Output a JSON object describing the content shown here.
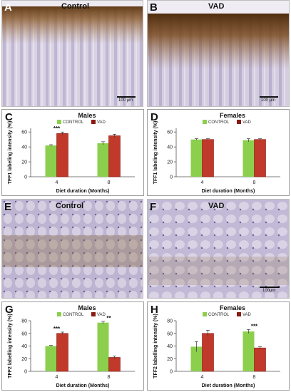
{
  "panels": {
    "A": {
      "letter": "A",
      "title": "Control",
      "scale": "100 μm"
    },
    "B": {
      "letter": "B",
      "title": "VAD",
      "scale": "100 μm"
    },
    "E": {
      "letter": "E",
      "title": "Control"
    },
    "F": {
      "letter": "F",
      "title": "VAD",
      "scale": "100μm"
    }
  },
  "colors": {
    "control": "#8ccf4d",
    "vad": "#c0392b",
    "vad_dark": "#8b1a10",
    "tissue": "#c9c2da",
    "stain": "#7a4a1e"
  },
  "chart_data": [
    {
      "panel": "C",
      "letter": "C",
      "type": "bar",
      "title": "Males",
      "categories": [
        "4",
        "8"
      ],
      "series": [
        {
          "name": "CONTROL",
          "values": [
            42,
            45
          ],
          "errors": [
            1,
            2
          ]
        },
        {
          "name": "VAD",
          "values": [
            58,
            55
          ],
          "errors": [
            2,
            2
          ]
        }
      ],
      "annotations": [
        {
          "category": "4",
          "text": "***"
        }
      ],
      "xlabel": "Diet duration (Months)",
      "ylabel": "TFF1 labeling intensity (%)",
      "ylim": [
        0,
        65
      ],
      "yticks": [
        0,
        20,
        40,
        60
      ],
      "legend": "top-center"
    },
    {
      "panel": "D",
      "letter": "D",
      "type": "bar",
      "title": "Females",
      "categories": [
        "4",
        "8"
      ],
      "series": [
        {
          "name": "CONTROL",
          "values": [
            50,
            49
          ],
          "errors": [
            1,
            2
          ]
        },
        {
          "name": "VAD",
          "values": [
            50,
            50
          ],
          "errors": [
            1,
            1
          ]
        }
      ],
      "annotations": [],
      "xlabel": "Diet duration (Months)",
      "ylabel": "TFF1 labeling intensity (%)",
      "ylim": [
        0,
        65
      ],
      "yticks": [
        0,
        20,
        40,
        60
      ],
      "legend": "top-center"
    },
    {
      "panel": "G",
      "letter": "G",
      "type": "bar",
      "title": "Males",
      "categories": [
        "4",
        "8"
      ],
      "series": [
        {
          "name": "CONTROL",
          "values": [
            40,
            77
          ],
          "errors": [
            1,
            2
          ]
        },
        {
          "name": "VAD",
          "values": [
            60,
            22
          ],
          "errors": [
            2,
            2
          ]
        }
      ],
      "annotations": [
        {
          "category": "4",
          "text": "***"
        },
        {
          "category": "8",
          "text": "**"
        }
      ],
      "xlabel": "Diet duration (Months)",
      "ylabel": "TFF2 labelling intensity (%)",
      "ylim": [
        0,
        80
      ],
      "yticks": [
        0,
        20,
        40,
        60,
        80
      ],
      "legend": "top-center"
    },
    {
      "panel": "H",
      "letter": "H",
      "type": "bar",
      "title": "Females",
      "categories": [
        "4",
        "8"
      ],
      "series": [
        {
          "name": "CONTROL",
          "values": [
            39,
            63
          ],
          "errors": [
            8,
            3
          ]
        },
        {
          "name": "VAD",
          "values": [
            60,
            37
          ],
          "errors": [
            5,
            2
          ]
        }
      ],
      "annotations": [
        {
          "category": "8",
          "text": "***"
        }
      ],
      "xlabel": "Diet duration (Months)",
      "ylabel": "TFF2 labelling intensity (%)",
      "ylim": [
        0,
        80
      ],
      "yticks": [
        0,
        20,
        40,
        60,
        80
      ],
      "legend": "top-center"
    }
  ]
}
